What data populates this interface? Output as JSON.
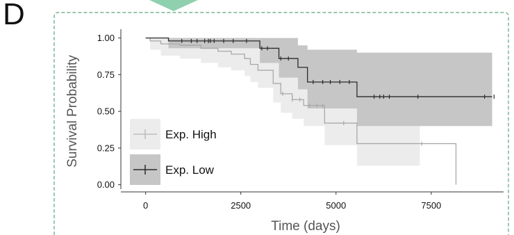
{
  "panel_label": "D",
  "chart_data": {
    "type": "line",
    "title": "",
    "xlabel": "Time (days)",
    "ylabel": "Survival Probability",
    "xlim": [
      -650,
      9400
    ],
    "ylim": [
      -0.03,
      1.06
    ],
    "x_ticks": [
      0,
      2500,
      5000,
      7500
    ],
    "x_tick_labels": [
      "0",
      "2500",
      "5000",
      "7500"
    ],
    "y_ticks": [
      0,
      0.25,
      0.5,
      0.75,
      1.0
    ],
    "y_tick_labels": [
      "0.00",
      "0.25",
      "0.50",
      "0.75",
      "1.00"
    ],
    "grid": false,
    "legend_position": "bottom-left",
    "colors": {
      "high_line": "#a8a8a8",
      "high_band": "#ececec",
      "low_line": "#2b2b2b",
      "low_band": "#c6c6c6",
      "frame": "#5aa57c",
      "top_shape": "#8fd0ae"
    },
    "series": [
      {
        "name": "Exp. High",
        "step_x": [
          0,
          120,
          400,
          900,
          1450,
          1900,
          2250,
          2600,
          2750,
          2950,
          3350,
          3550,
          3850,
          4150,
          4700,
          5550,
          8150
        ],
        "step_y": [
          1.0,
          0.98,
          0.96,
          0.95,
          0.93,
          0.91,
          0.89,
          0.86,
          0.82,
          0.78,
          0.69,
          0.62,
          0.58,
          0.54,
          0.42,
          0.28,
          0.0
        ],
        "upper": [
          1.0,
          1.0,
          1.0,
          1.0,
          1.0,
          1.0,
          1.0,
          1.0,
          0.97,
          0.95,
          0.91,
          0.86,
          0.8,
          0.75,
          0.62,
          0.55,
          0.55
        ],
        "lower": [
          1.0,
          0.92,
          0.88,
          0.86,
          0.83,
          0.8,
          0.78,
          0.74,
          0.7,
          0.66,
          0.56,
          0.49,
          0.45,
          0.4,
          0.27,
          0.13,
          0.13
        ],
        "censor_x": [
          3600,
          3850,
          4050,
          4300,
          4500,
          4650,
          5200,
          7250
        ]
      },
      {
        "name": "Exp. Low",
        "step_x": [
          0,
          600,
          3000,
          3500,
          4000,
          4250,
          5550,
          9100
        ],
        "step_y": [
          1.0,
          0.98,
          0.93,
          0.86,
          0.8,
          0.7,
          0.6,
          0.6
        ],
        "upper": [
          1.0,
          1.0,
          1.0,
          1.0,
          0.95,
          0.92,
          0.9,
          0.9
        ],
        "lower": [
          1.0,
          0.93,
          0.83,
          0.73,
          0.65,
          0.52,
          0.4,
          0.4
        ],
        "censor_x": [
          950,
          1200,
          1350,
          1550,
          1650,
          1700,
          1800,
          2050,
          2300,
          2650,
          3050,
          3200,
          3550,
          3750,
          4400,
          4650,
          4850,
          5100,
          5350,
          6000,
          6150,
          6250,
          6400,
          7150,
          8900,
          9150
        ]
      }
    ]
  }
}
